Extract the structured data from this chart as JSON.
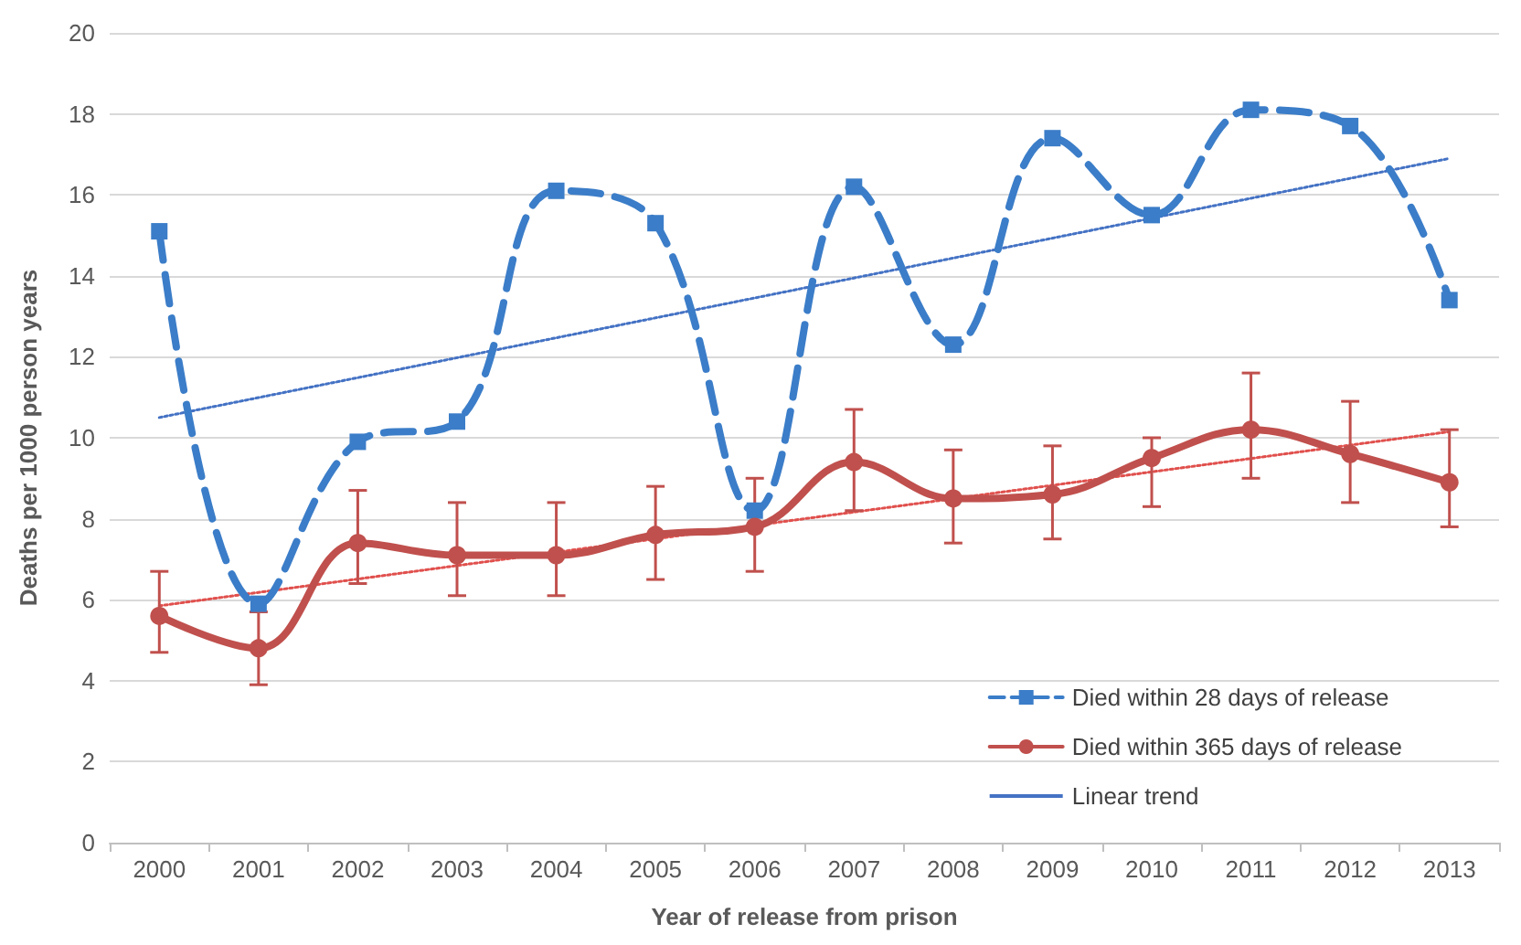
{
  "chart_data": {
    "type": "line",
    "xlabel": "Year of release from prison",
    "ylabel": "Deaths per 1000 person years",
    "categories": [
      "2000",
      "2001",
      "2002",
      "2003",
      "2004",
      "2005",
      "2006",
      "2007",
      "2008",
      "2009",
      "2010",
      "2011",
      "2012",
      "2013"
    ],
    "ylim": [
      0,
      20
    ],
    "yticks": [
      0,
      2,
      4,
      6,
      8,
      10,
      12,
      14,
      16,
      18,
      20
    ],
    "grid": "y",
    "legend": "bottom right",
    "series": [
      {
        "name": "Died within 28 days of release",
        "color": "#3b7dc8",
        "marker": "square",
        "line_style": "dashed",
        "values": [
          15.1,
          5.9,
          9.9,
          10.4,
          16.1,
          15.3,
          8.2,
          16.2,
          12.3,
          17.4,
          15.5,
          18.1,
          17.7,
          13.4
        ]
      },
      {
        "name": "Died within 365 days of release",
        "color": "#c0504d",
        "marker": "circle",
        "line_style": "solid",
        "values": [
          5.6,
          4.8,
          7.4,
          7.1,
          7.1,
          7.6,
          7.8,
          9.4,
          8.5,
          8.6,
          9.5,
          10.2,
          9.6,
          8.9
        ],
        "errors": [
          [
            4.7,
            6.7
          ],
          [
            3.9,
            5.7
          ],
          [
            6.4,
            8.7
          ],
          [
            6.1,
            8.4
          ],
          [
            6.1,
            8.4
          ],
          [
            6.5,
            8.8
          ],
          [
            6.7,
            9.0
          ],
          [
            8.2,
            10.7
          ],
          [
            7.4,
            9.7
          ],
          [
            7.5,
            9.8
          ],
          [
            8.3,
            10.0
          ],
          [
            9.0,
            11.6
          ],
          [
            8.4,
            10.9
          ],
          [
            7.8,
            10.2
          ]
        ]
      },
      {
        "name": "Linear trend",
        "color": "#4472c4",
        "marker": "none",
        "line_style": "dotted",
        "values": [
          10.5,
          null,
          null,
          null,
          null,
          null,
          null,
          null,
          null,
          null,
          null,
          null,
          null,
          16.9
        ]
      },
      {
        "color": "#e0504d",
        "marker": "none",
        "line_style": "dotted",
        "values": [
          5.85,
          null,
          null,
          null,
          null,
          null,
          null,
          null,
          null,
          null,
          null,
          null,
          null,
          10.15
        ]
      }
    ]
  }
}
